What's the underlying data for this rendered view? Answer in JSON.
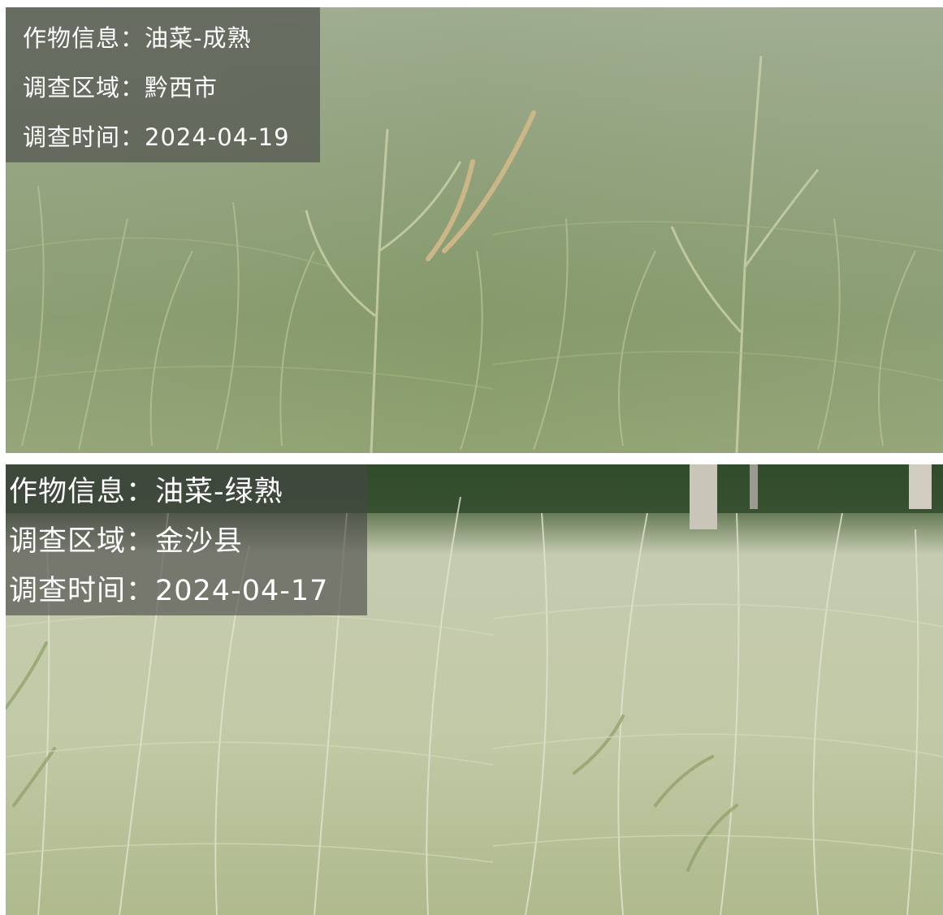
{
  "panels": [
    {
      "lines": [
        "作物信息：油菜-成熟",
        "调查区域：黔西市",
        "调查时间：2024-04-19"
      ]
    },
    {
      "lines": [
        "作物信息：油菜-绿熟",
        "调查区域：金沙县",
        "调查时间：2024-04-17"
      ]
    }
  ]
}
